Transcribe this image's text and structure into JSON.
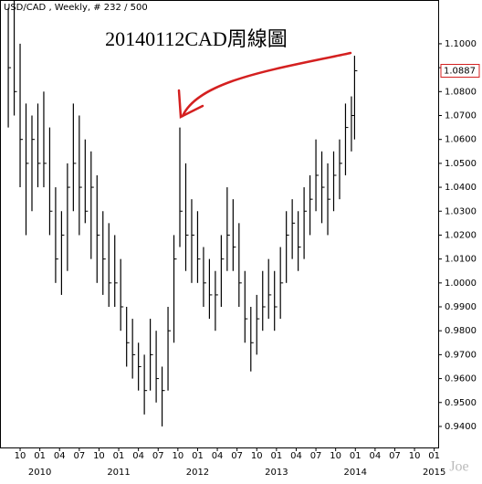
{
  "chart_data": {
    "type": "ohlc",
    "header": "USD/CAD , Weekly, # 232 / 500",
    "title": "20140112CAD周線圖",
    "watermark": "Joe",
    "color": "#000000",
    "annotation_color": "#d42020",
    "last_price": {
      "value": 1.0887,
      "label": "1.0887"
    },
    "xlim": [
      2009.495,
      2015.05
    ],
    "ylim": [
      0.9312,
      1.1183
    ],
    "xticks": [
      {
        "value": 2009.75,
        "label": "10"
      },
      {
        "value": 2010.0,
        "label": "01"
      },
      {
        "value": 2010.25,
        "label": "04"
      },
      {
        "value": 2010.5,
        "label": "07"
      },
      {
        "value": 2010.75,
        "label": "10"
      },
      {
        "value": 2011.0,
        "label": "01"
      },
      {
        "value": 2011.25,
        "label": "04"
      },
      {
        "value": 2011.5,
        "label": "07"
      },
      {
        "value": 2011.75,
        "label": "10"
      },
      {
        "value": 2012.0,
        "label": "01"
      },
      {
        "value": 2012.25,
        "label": "04"
      },
      {
        "value": 2012.5,
        "label": "07"
      },
      {
        "value": 2012.75,
        "label": "10"
      },
      {
        "value": 2013.0,
        "label": "01"
      },
      {
        "value": 2013.25,
        "label": "04"
      },
      {
        "value": 2013.5,
        "label": "07"
      },
      {
        "value": 2013.75,
        "label": "10"
      },
      {
        "value": 2014.0,
        "label": "01"
      },
      {
        "value": 2014.25,
        "label": "04"
      },
      {
        "value": 2014.5,
        "label": "07"
      },
      {
        "value": 2014.75,
        "label": "10"
      },
      {
        "value": 2015.0,
        "label": "01"
      }
    ],
    "year_ticks": [
      2010,
      2011,
      2012,
      2013,
      2014,
      2015
    ],
    "yticks": [
      {
        "value": 0.94,
        "label": "0.9400"
      },
      {
        "value": 0.95,
        "label": "0.9500"
      },
      {
        "value": 0.96,
        "label": "0.9600"
      },
      {
        "value": 0.97,
        "label": "0.9700"
      },
      {
        "value": 0.98,
        "label": "0.9800"
      },
      {
        "value": 0.99,
        "label": "0.9900"
      },
      {
        "value": 1.0,
        "label": "1.0000"
      },
      {
        "value": 1.01,
        "label": "1.0100"
      },
      {
        "value": 1.02,
        "label": "1.0200"
      },
      {
        "value": 1.03,
        "label": "1.0300"
      },
      {
        "value": 1.04,
        "label": "1.0400"
      },
      {
        "value": 1.05,
        "label": "1.0500"
      },
      {
        "value": 1.06,
        "label": "1.0600"
      },
      {
        "value": 1.07,
        "label": "1.0700"
      },
      {
        "value": 1.08,
        "label": "1.0800"
      },
      {
        "value": 1.09,
        "label": "1.0900"
      },
      {
        "value": 1.1,
        "label": "1.1000"
      }
    ],
    "x": [
      2009.6,
      2009.675,
      2009.75,
      2009.825,
      2009.9,
      2009.975,
      2010.05,
      2010.125,
      2010.2,
      2010.275,
      2010.35,
      2010.425,
      2010.5,
      2010.575,
      2010.65,
      2010.725,
      2010.8,
      2010.875,
      2010.95,
      2011.025,
      2011.1,
      2011.175,
      2011.25,
      2011.325,
      2011.4,
      2011.475,
      2011.55,
      2011.625,
      2011.7,
      2011.775,
      2011.85,
      2011.925,
      2012.0,
      2012.075,
      2012.15,
      2012.225,
      2012.3,
      2012.375,
      2012.45,
      2012.525,
      2012.6,
      2012.675,
      2012.75,
      2012.825,
      2012.9,
      2012.975,
      2013.05,
      2013.125,
      2013.2,
      2013.275,
      2013.35,
      2013.425,
      2013.5,
      2013.575,
      2013.65,
      2013.725,
      2013.8,
      2013.875,
      2013.95,
      2013.99
    ],
    "high": [
      1.115,
      1.118,
      1.1,
      1.075,
      1.07,
      1.075,
      1.08,
      1.065,
      1.04,
      1.03,
      1.05,
      1.075,
      1.07,
      1.06,
      1.055,
      1.045,
      1.03,
      1.025,
      1.02,
      1.01,
      0.99,
      0.985,
      0.975,
      0.97,
      0.985,
      0.98,
      0.965,
      0.99,
      1.02,
      1.065,
      1.05,
      1.035,
      1.03,
      1.015,
      1.01,
      1.005,
      1.02,
      1.04,
      1.035,
      1.025,
      1.005,
      0.99,
      0.995,
      1.005,
      1.01,
      1.005,
      1.015,
      1.03,
      1.035,
      1.03,
      1.04,
      1.045,
      1.06,
      1.055,
      1.05,
      1.055,
      1.06,
      1.075,
      1.078,
      1.095
    ],
    "low": [
      1.065,
      1.07,
      1.04,
      1.02,
      1.03,
      1.04,
      1.04,
      1.02,
      1.0,
      0.995,
      1.005,
      1.03,
      1.02,
      1.025,
      1.01,
      1.0,
      0.995,
      0.99,
      0.99,
      0.98,
      0.965,
      0.96,
      0.955,
      0.945,
      0.955,
      0.95,
      0.94,
      0.955,
      0.975,
      1.015,
      1.005,
      1.0,
      1.0,
      0.99,
      0.985,
      0.98,
      0.99,
      1.005,
      1.005,
      0.99,
      0.975,
      0.963,
      0.97,
      0.98,
      0.985,
      0.98,
      0.985,
      1.0,
      1.01,
      1.005,
      1.01,
      1.02,
      1.03,
      1.025,
      1.02,
      1.03,
      1.035,
      1.045,
      1.055,
      1.06
    ],
    "close": [
      1.09,
      1.08,
      1.06,
      1.05,
      1.06,
      1.05,
      1.05,
      1.03,
      1.01,
      1.02,
      1.04,
      1.05,
      1.04,
      1.03,
      1.04,
      1.02,
      1.01,
      1.0,
      1.0,
      0.99,
      0.975,
      0.97,
      0.965,
      0.955,
      0.97,
      0.96,
      0.955,
      0.98,
      1.01,
      1.03,
      1.02,
      1.02,
      1.01,
      1.0,
      0.995,
      0.995,
      1.01,
      1.02,
      1.015,
      1.0,
      0.985,
      0.975,
      0.985,
      0.99,
      0.995,
      0.99,
      1.0,
      1.02,
      1.025,
      1.015,
      1.03,
      1.035,
      1.045,
      1.04,
      1.035,
      1.045,
      1.05,
      1.065,
      1.07,
      1.0887
    ]
  }
}
